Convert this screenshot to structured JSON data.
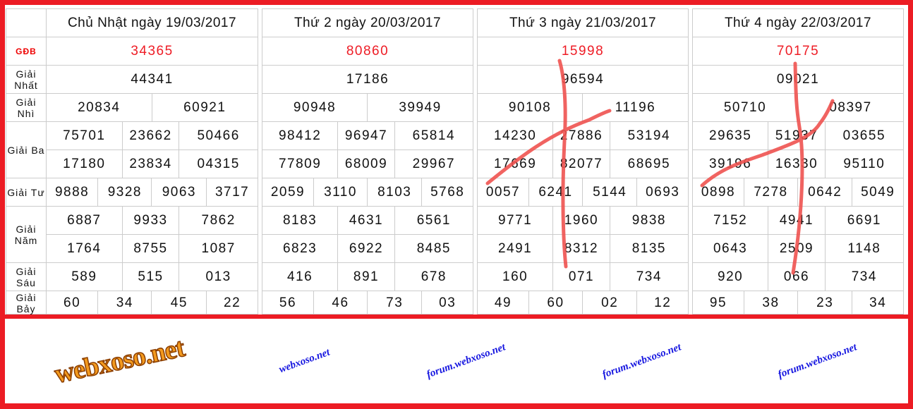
{
  "labels": {
    "gdb": "GĐB",
    "nhat": "Giải Nhất",
    "nhi": "Giải Nhì",
    "ba": "Giải Ba",
    "tu": "Giải Tư",
    "nam": "Giải Năm",
    "sau": "Giải Sáu",
    "bay": "Giải Bảy"
  },
  "watermarks": {
    "logo": "webxoso.net",
    "site": "webxoso.net",
    "forum": "forum.webxoso.net"
  },
  "colors": {
    "frame": "#ec1c24",
    "special_prize": "#ee1c25",
    "watermark": "#1515e0",
    "annotation": "#ef5350"
  },
  "days": [
    {
      "header": "Chủ Nhật ngày 19/03/2017",
      "gdb": "34365",
      "nhat": "44341",
      "nhi": [
        "20834",
        "60921"
      ],
      "ba": [
        "75701",
        "23662",
        "50466",
        "17180",
        "23834",
        "04315"
      ],
      "tu": [
        "9888",
        "9328",
        "9063",
        "3717"
      ],
      "nam": [
        "6887",
        "9933",
        "7862",
        "1764",
        "8755",
        "1087"
      ],
      "sau": [
        "589",
        "515",
        "013"
      ],
      "bay": [
        "60",
        "34",
        "45",
        "22"
      ]
    },
    {
      "header": "Thứ 2 ngày 20/03/2017",
      "gdb": "80860",
      "nhat": "17186",
      "nhi": [
        "90948",
        "39949"
      ],
      "ba": [
        "98412",
        "96947",
        "65814",
        "77809",
        "68009",
        "29967"
      ],
      "tu": [
        "2059",
        "3110",
        "8103",
        "5768"
      ],
      "nam": [
        "8183",
        "4631",
        "6561",
        "6823",
        "6922",
        "8485"
      ],
      "sau": [
        "416",
        "891",
        "678"
      ],
      "bay": [
        "56",
        "46",
        "73",
        "03"
      ]
    },
    {
      "header": "Thứ 3 ngày 21/03/2017",
      "gdb": "15998",
      "nhat": "96594",
      "nhi": [
        "90108",
        "11196"
      ],
      "ba": [
        "14230",
        "27886",
        "53194",
        "17669",
        "82077",
        "68695"
      ],
      "tu": [
        "0057",
        "6241",
        "5144",
        "0693"
      ],
      "nam": [
        "9771",
        "1960",
        "9838",
        "2491",
        "8312",
        "8135"
      ],
      "sau": [
        "160",
        "071",
        "734"
      ],
      "bay": [
        "49",
        "60",
        "02",
        "12"
      ]
    },
    {
      "header": "Thứ 4 ngày 22/03/2017",
      "gdb": "70175",
      "nhat": "09021",
      "nhi": [
        "50710",
        "08397"
      ],
      "ba": [
        "29635",
        "51937",
        "03655",
        "39196",
        "16330",
        "95110"
      ],
      "tu": [
        "0898",
        "7278",
        "0642",
        "5049"
      ],
      "nam": [
        "7152",
        "4941",
        "6691",
        "0643",
        "2509",
        "1148"
      ],
      "sau": [
        "920",
        "066",
        "734"
      ],
      "bay": [
        "95",
        "38",
        "23",
        "34"
      ]
    }
  ]
}
